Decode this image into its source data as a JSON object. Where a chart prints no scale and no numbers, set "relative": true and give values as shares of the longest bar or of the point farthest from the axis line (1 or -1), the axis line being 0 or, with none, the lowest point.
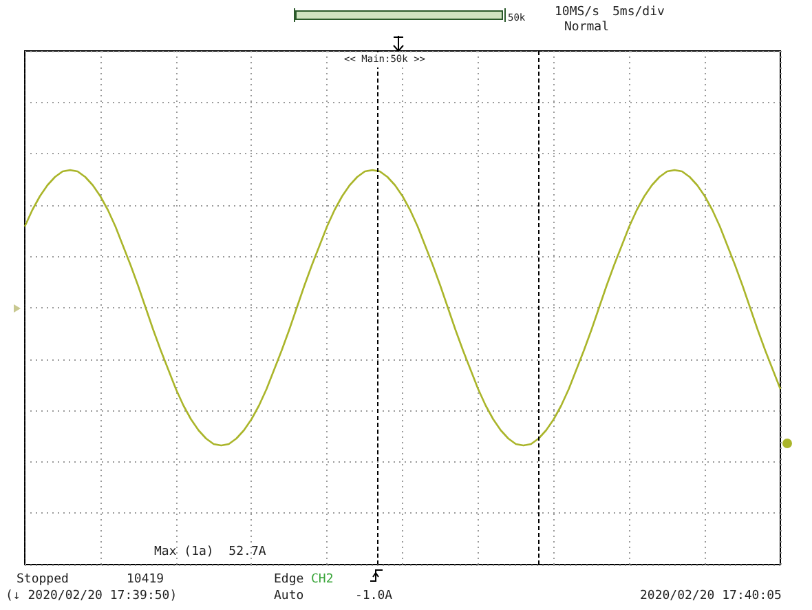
{
  "chart_data": {
    "type": "line",
    "relative": true,
    "grid": true,
    "line_style": "solid",
    "categories": [
      null,
      null,
      null,
      null,
      null,
      null,
      null,
      null,
      null,
      null,
      null,
      null,
      null,
      null,
      null,
      null,
      null,
      null,
      null,
      null,
      null,
      null,
      null,
      null,
      null,
      null,
      null,
      null,
      null,
      null,
      null,
      null,
      null,
      null,
      null,
      null,
      null,
      null,
      null,
      null,
      null,
      null,
      null,
      null,
      null,
      null,
      null,
      null,
      null,
      null,
      null,
      null,
      null,
      null,
      null,
      null,
      null,
      null,
      null,
      null,
      null,
      null,
      null,
      null,
      null,
      null,
      null,
      null,
      null,
      null,
      null,
      null,
      null,
      null,
      null,
      null,
      null,
      null,
      null,
      null,
      null,
      null,
      null,
      null,
      null,
      null,
      null,
      null,
      null,
      null,
      null,
      null,
      null,
      null,
      null,
      null,
      null,
      null,
      null,
      null,
      null
    ],
    "series": [
      {
        "color": "#aab52a",
        "values": [
          0.59,
          0.71,
          0.81,
          0.89,
          0.95,
          0.99,
          1,
          0.99,
          0.95,
          0.89,
          0.81,
          0.71,
          0.59,
          0.45,
          0.31,
          0.16,
          0,
          -0.16,
          -0.31,
          -0.45,
          -0.59,
          -0.71,
          -0.81,
          -0.89,
          -0.95,
          -0.99,
          -1,
          -0.99,
          -0.95,
          -0.89,
          -0.81,
          -0.71,
          -0.59,
          -0.45,
          -0.31,
          -0.16,
          0,
          0.16,
          0.31,
          0.45,
          0.59,
          0.71,
          0.81,
          0.89,
          0.95,
          0.99,
          1,
          0.99,
          0.95,
          0.89,
          0.81,
          0.71,
          0.59,
          0.45,
          0.31,
          0.16,
          0,
          -0.16,
          -0.31,
          -0.45,
          -0.59,
          -0.71,
          -0.81,
          -0.89,
          -0.95,
          -0.99,
          -1,
          -0.99,
          -0.95,
          -0.89,
          -0.81,
          -0.71,
          -0.59,
          -0.45,
          -0.31,
          -0.16,
          0,
          0.16,
          0.31,
          0.45,
          0.59,
          0.71,
          0.81,
          0.89,
          0.95,
          0.99,
          1,
          0.99,
          0.95,
          0.89,
          0.81,
          0.71,
          0.59,
          0.45,
          0.31,
          0.16,
          0,
          -0.16,
          -0.31,
          -0.45,
          -0.59
        ]
      }
    ],
    "annotations": [
      "50k",
      "10MS/s",
      "5ms/div",
      "Normal",
      "<< Main:50k >>",
      "Max (1a)  52.7A",
      "Stopped",
      "10419",
      "(↓ 2020/02/20 17:39:50)",
      "Edge",
      "CH2",
      "Auto",
      "-1.0A",
      "2020/02/20 17:40:05"
    ]
  }
}
